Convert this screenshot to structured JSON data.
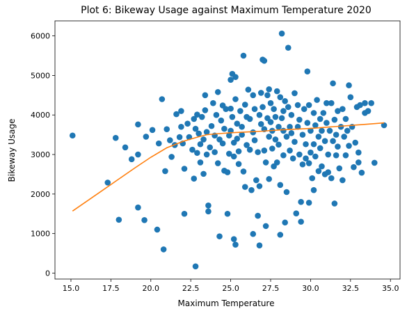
{
  "chart_data": {
    "type": "scatter",
    "title": "Plot 6: Bikeway Usage against Maximum Temperature 2020",
    "xlabel": "Maximum Temperature",
    "ylabel": "Bikeway Usage",
    "xlim": [
      14.0,
      35.6
    ],
    "ylim": [
      -150,
      6380
    ],
    "x_ticks": [
      15.0,
      17.5,
      20.0,
      22.5,
      25.0,
      27.5,
      30.0,
      32.5,
      35.0
    ],
    "x_tick_labels": [
      "15.0",
      "17.5",
      "20.0",
      "22.5",
      "25.0",
      "27.5",
      "30.0",
      "32.5",
      "35.0"
    ],
    "y_ticks": [
      0,
      1000,
      2000,
      3000,
      4000,
      5000,
      6000
    ],
    "y_tick_labels": [
      "0",
      "1000",
      "2000",
      "3000",
      "4000",
      "5000",
      "6000"
    ],
    "grid": false,
    "colors": {
      "points": "#1f77b4",
      "fit_line": "#ff7f0e"
    },
    "series": [
      {
        "type": "scatter",
        "points": [
          [
            15.1,
            3480
          ],
          [
            17.3,
            2290
          ],
          [
            17.8,
            3420
          ],
          [
            18.0,
            1350
          ],
          [
            18.4,
            3180
          ],
          [
            18.8,
            2880
          ],
          [
            19.2,
            1660
          ],
          [
            19.2,
            3000
          ],
          [
            19.2,
            3760
          ],
          [
            19.6,
            1340
          ],
          [
            19.7,
            3450
          ],
          [
            20.1,
            3620
          ],
          [
            20.4,
            1100
          ],
          [
            20.5,
            3280
          ],
          [
            20.7,
            4400
          ],
          [
            20.8,
            600
          ],
          [
            20.9,
            2580
          ],
          [
            21.0,
            3640
          ],
          [
            21.2,
            3360
          ],
          [
            21.3,
            2940
          ],
          [
            21.5,
            3240
          ],
          [
            21.6,
            4020
          ],
          [
            21.8,
            3440
          ],
          [
            21.9,
            3700
          ],
          [
            21.9,
            4100
          ],
          [
            22.0,
            3280
          ],
          [
            22.1,
            2640
          ],
          [
            22.1,
            1500
          ],
          [
            22.3,
            3780
          ],
          [
            22.4,
            3440
          ],
          [
            22.6,
            3120
          ],
          [
            22.7,
            2390
          ],
          [
            22.7,
            3900
          ],
          [
            22.8,
            3650
          ],
          [
            22.8,
            170
          ],
          [
            22.9,
            4010
          ],
          [
            22.9,
            3040
          ],
          [
            23.0,
            3530
          ],
          [
            23.1,
            3260
          ],
          [
            23.1,
            2800
          ],
          [
            23.2,
            3950
          ],
          [
            23.3,
            3380
          ],
          [
            23.3,
            2510
          ],
          [
            23.4,
            4500
          ],
          [
            23.4,
            4120
          ],
          [
            23.5,
            3570
          ],
          [
            23.5,
            3000
          ],
          [
            23.6,
            1710
          ],
          [
            23.6,
            1560
          ],
          [
            23.7,
            3180
          ],
          [
            23.8,
            3720
          ],
          [
            23.9,
            4300
          ],
          [
            24.0,
            3480
          ],
          [
            24.0,
            3060
          ],
          [
            24.1,
            4000
          ],
          [
            24.2,
            4580
          ],
          [
            24.2,
            2780
          ],
          [
            24.3,
            3380
          ],
          [
            24.3,
            930
          ],
          [
            24.4,
            3860
          ],
          [
            24.5,
            4240
          ],
          [
            24.5,
            3280
          ],
          [
            24.6,
            3650
          ],
          [
            24.6,
            2590
          ],
          [
            24.7,
            4150
          ],
          [
            24.8,
            2550
          ],
          [
            24.8,
            1500
          ],
          [
            24.9,
            3480
          ],
          [
            24.9,
            3020
          ],
          [
            25.0,
            4890
          ],
          [
            25.0,
            4160
          ],
          [
            25.0,
            3600
          ],
          [
            25.1,
            3950
          ],
          [
            25.1,
            5040
          ],
          [
            25.2,
            3300
          ],
          [
            25.2,
            2950
          ],
          [
            25.2,
            860
          ],
          [
            25.3,
            4960
          ],
          [
            25.3,
            4400
          ],
          [
            25.3,
            720
          ],
          [
            25.4,
            3780
          ],
          [
            25.4,
            3400
          ],
          [
            25.5,
            3080
          ],
          [
            25.5,
            2760
          ],
          [
            25.6,
            4100
          ],
          [
            25.7,
            3700
          ],
          [
            25.7,
            3500
          ],
          [
            25.8,
            5500
          ],
          [
            25.8,
            2570
          ],
          [
            25.9,
            4260
          ],
          [
            25.9,
            2180
          ],
          [
            26.0,
            3950
          ],
          [
            26.0,
            3240
          ],
          [
            26.1,
            4640
          ],
          [
            26.2,
            3900
          ],
          [
            26.2,
            3120
          ],
          [
            26.3,
            2100
          ],
          [
            26.4,
            4500
          ],
          [
            26.4,
            3560
          ],
          [
            26.4,
            990
          ],
          [
            26.5,
            4150
          ],
          [
            26.5,
            3360
          ],
          [
            26.6,
            2350
          ],
          [
            26.7,
            3060
          ],
          [
            26.7,
            1450
          ],
          [
            26.8,
            4000
          ],
          [
            26.8,
            2200
          ],
          [
            26.8,
            700
          ],
          [
            26.9,
            3770
          ],
          [
            26.9,
            4560
          ],
          [
            27.0,
            5400
          ],
          [
            27.0,
            4200
          ],
          [
            27.1,
            5370
          ],
          [
            27.1,
            3640
          ],
          [
            27.1,
            3100
          ],
          [
            27.2,
            2800
          ],
          [
            27.2,
            1190
          ],
          [
            27.3,
            4500
          ],
          [
            27.3,
            3920
          ],
          [
            27.4,
            4650
          ],
          [
            27.4,
            3450
          ],
          [
            27.4,
            2380
          ],
          [
            27.5,
            4300
          ],
          [
            27.5,
            3820
          ],
          [
            27.6,
            3150
          ],
          [
            27.6,
            3600
          ],
          [
            27.7,
            4150
          ],
          [
            27.7,
            2700
          ],
          [
            27.8,
            3950
          ],
          [
            27.8,
            3380
          ],
          [
            27.9,
            4600
          ],
          [
            27.9,
            2800
          ],
          [
            28.0,
            3700
          ],
          [
            28.0,
            3250
          ],
          [
            28.1,
            4450
          ],
          [
            28.1,
            2230
          ],
          [
            28.1,
            970
          ],
          [
            28.2,
            6060
          ],
          [
            28.2,
            3920
          ],
          [
            28.3,
            4100
          ],
          [
            28.3,
            3600
          ],
          [
            28.3,
            2980
          ],
          [
            28.4,
            4350
          ],
          [
            28.4,
            1280
          ],
          [
            28.5,
            3450
          ],
          [
            28.5,
            2050
          ],
          [
            28.6,
            5700
          ],
          [
            28.6,
            4200
          ],
          [
            28.7,
            3700
          ],
          [
            28.7,
            3100
          ],
          [
            28.8,
            4000
          ],
          [
            28.8,
            3540
          ],
          [
            28.9,
            2900
          ],
          [
            29.0,
            4550
          ],
          [
            29.0,
            3320
          ],
          [
            29.1,
            1510
          ],
          [
            29.2,
            4250
          ],
          [
            29.2,
            3700
          ],
          [
            29.3,
            3880
          ],
          [
            29.3,
            3000
          ],
          [
            29.4,
            1800
          ],
          [
            29.4,
            1300
          ],
          [
            29.5,
            3500
          ],
          [
            29.5,
            2750
          ],
          [
            29.6,
            4150
          ],
          [
            29.7,
            3260
          ],
          [
            29.7,
            2900
          ],
          [
            29.8,
            5100
          ],
          [
            29.8,
            3800
          ],
          [
            29.9,
            4250
          ],
          [
            29.9,
            2780
          ],
          [
            29.9,
            1780
          ],
          [
            30.0,
            3600
          ],
          [
            30.0,
            3050
          ],
          [
            30.1,
            2400
          ],
          [
            30.2,
            4050
          ],
          [
            30.2,
            3260
          ],
          [
            30.2,
            2100
          ],
          [
            30.3,
            3740
          ],
          [
            30.3,
            2950
          ],
          [
            30.4,
            4380
          ],
          [
            30.5,
            3450
          ],
          [
            30.5,
            2580
          ],
          [
            30.6,
            3900
          ],
          [
            30.6,
            3160
          ],
          [
            30.7,
            3600
          ],
          [
            30.7,
            2700
          ],
          [
            30.8,
            4050
          ],
          [
            30.9,
            3340
          ],
          [
            30.9,
            2500
          ],
          [
            31.0,
            4300
          ],
          [
            31.0,
            3800
          ],
          [
            31.1,
            3000
          ],
          [
            31.1,
            2550
          ],
          [
            31.2,
            3600
          ],
          [
            31.3,
            4300
          ],
          [
            31.3,
            2400
          ],
          [
            31.4,
            4800
          ],
          [
            31.4,
            3340
          ],
          [
            31.5,
            3880
          ],
          [
            31.5,
            1760
          ],
          [
            31.6,
            3500
          ],
          [
            31.6,
            2980
          ],
          [
            31.7,
            4100
          ],
          [
            31.7,
            3200
          ],
          [
            31.8,
            2650
          ],
          [
            31.9,
            3700
          ],
          [
            32.0,
            4150
          ],
          [
            32.0,
            2350
          ],
          [
            32.1,
            3450
          ],
          [
            32.2,
            3900
          ],
          [
            32.2,
            2980
          ],
          [
            32.3,
            3600
          ],
          [
            32.4,
            4750
          ],
          [
            32.4,
            3220
          ],
          [
            32.5,
            4450
          ],
          [
            32.6,
            3700
          ],
          [
            32.7,
            2680
          ],
          [
            32.8,
            3300
          ],
          [
            32.9,
            4200
          ],
          [
            33.0,
            3050
          ],
          [
            33.0,
            2800
          ],
          [
            33.1,
            4250
          ],
          [
            33.2,
            2540
          ],
          [
            33.4,
            4300
          ],
          [
            33.4,
            4050
          ],
          [
            33.6,
            4100
          ],
          [
            33.8,
            4300
          ],
          [
            34.0,
            2790
          ],
          [
            34.6,
            3740
          ]
        ]
      },
      {
        "type": "line",
        "points": [
          [
            15.1,
            1570
          ],
          [
            16.0,
            1820
          ],
          [
            17.0,
            2100
          ],
          [
            18.0,
            2380
          ],
          [
            19.0,
            2660
          ],
          [
            20.0,
            2930
          ],
          [
            21.0,
            3170
          ],
          [
            22.0,
            3330
          ],
          [
            23.0,
            3450
          ],
          [
            23.5,
            3500
          ],
          [
            24.0,
            3520
          ],
          [
            25.0,
            3550
          ],
          [
            26.0,
            3570
          ],
          [
            27.0,
            3590
          ],
          [
            28.0,
            3620
          ],
          [
            29.0,
            3640
          ],
          [
            30.0,
            3660
          ],
          [
            31.0,
            3690
          ],
          [
            32.0,
            3720
          ],
          [
            33.0,
            3750
          ],
          [
            34.0,
            3780
          ],
          [
            34.6,
            3800
          ]
        ]
      }
    ]
  }
}
